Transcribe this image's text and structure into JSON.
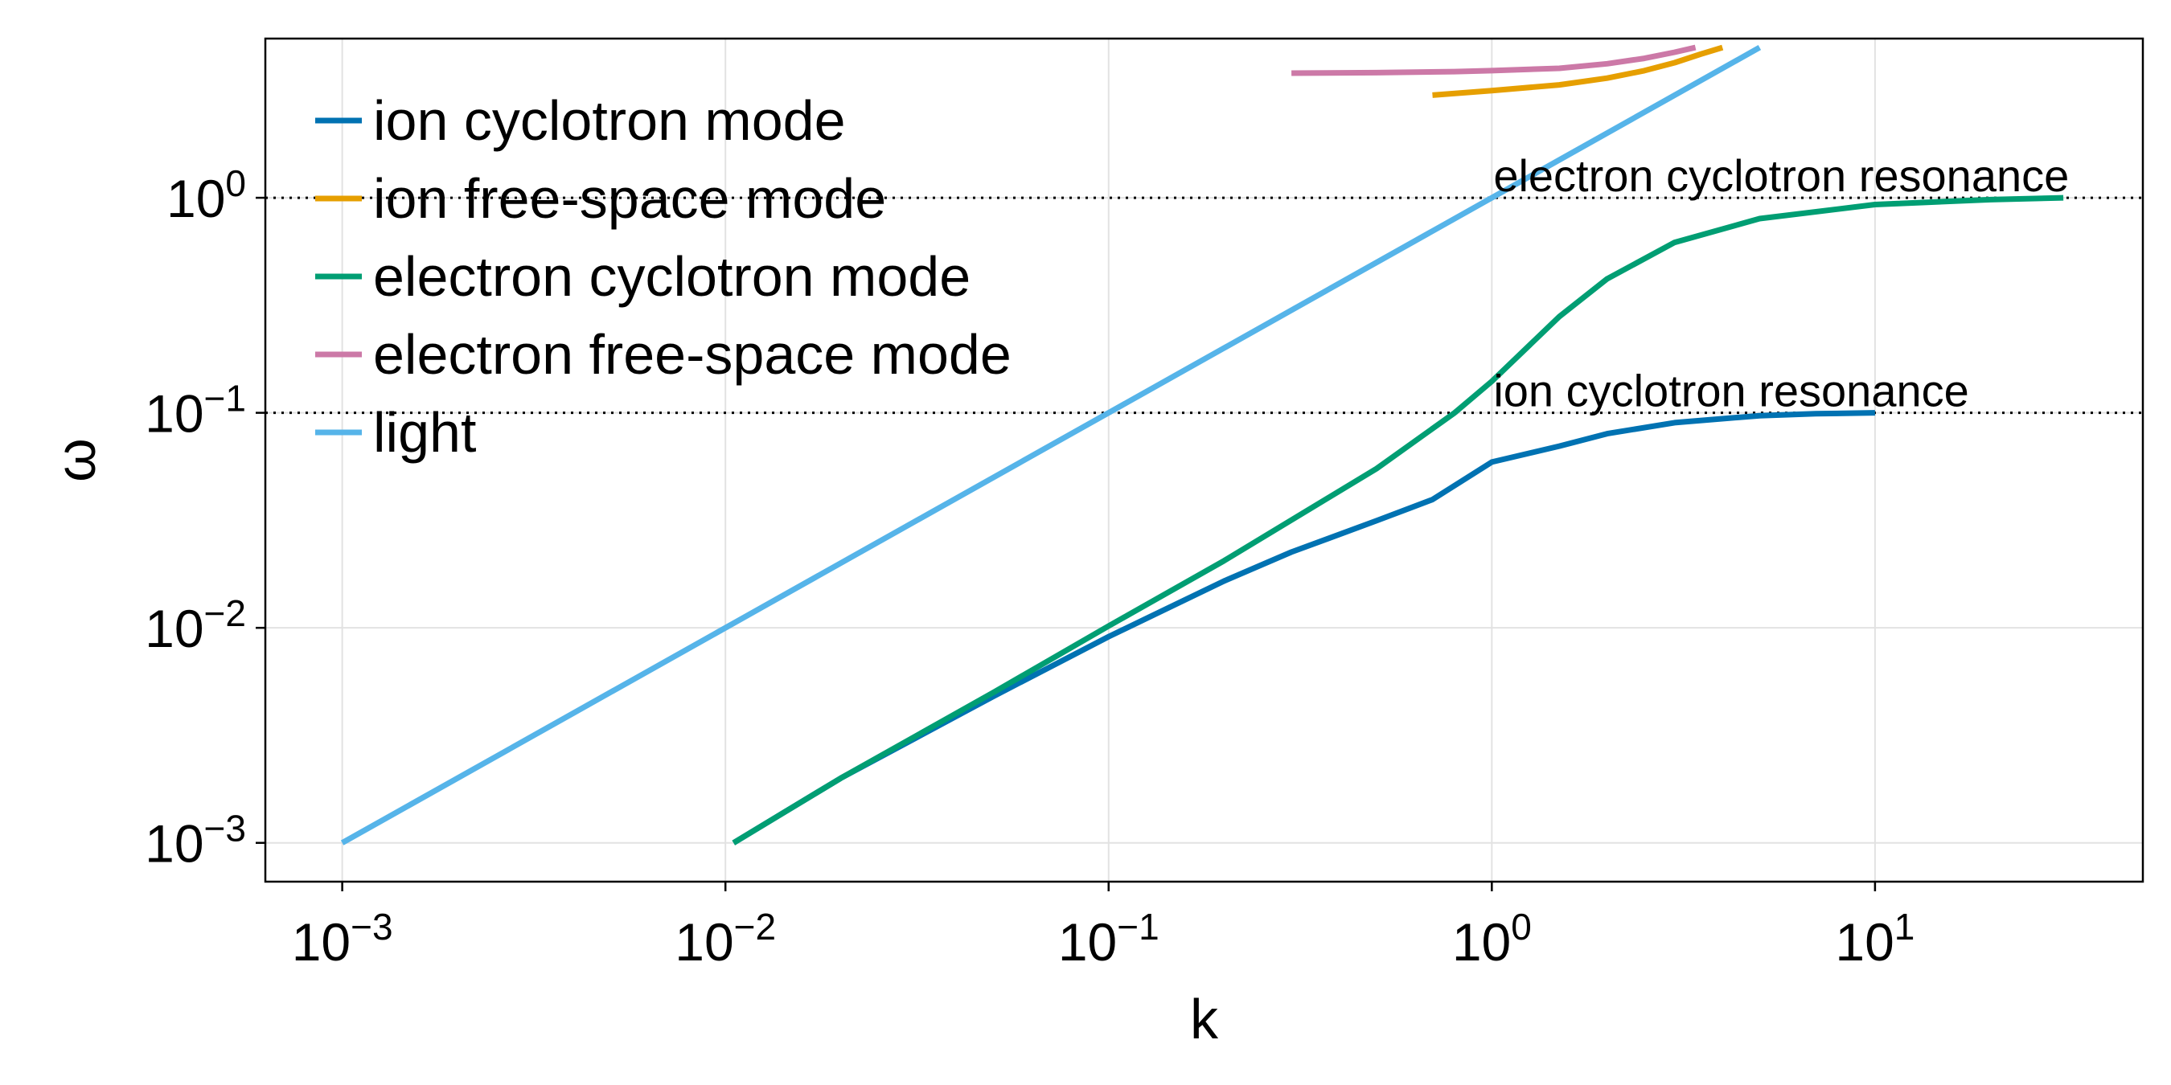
{
  "chart_data": {
    "type": "line",
    "xscale": "log",
    "yscale": "log",
    "xlabel": "k",
    "ylabel": "ω",
    "xlim": [
      0.00063,
      50
    ],
    "ylim": [
      0.00066,
      5.5
    ],
    "grid": true,
    "legend_position": "top-left",
    "x_ticks": [
      {
        "value": 0.001,
        "base": "10",
        "exp": "−3"
      },
      {
        "value": 0.01,
        "base": "10",
        "exp": "−2"
      },
      {
        "value": 0.1,
        "base": "10",
        "exp": "−1"
      },
      {
        "value": 1,
        "base": "10",
        "exp": "0"
      },
      {
        "value": 10,
        "base": "10",
        "exp": "1"
      }
    ],
    "y_ticks": [
      {
        "value": 0.001,
        "base": "10",
        "exp": "−3"
      },
      {
        "value": 0.01,
        "base": "10",
        "exp": "−2"
      },
      {
        "value": 0.1,
        "base": "10",
        "exp": "−1"
      },
      {
        "value": 1,
        "base": "10",
        "exp": "0"
      }
    ],
    "series": [
      {
        "name": "ion cyclotron mode",
        "color": "#0072b2",
        "x": [
          0.0105,
          0.02,
          0.05,
          0.1,
          0.2,
          0.3,
          0.5,
          0.7,
          1,
          1.5,
          2,
          3,
          5,
          7,
          10
        ],
        "y": [
          0.001,
          0.002,
          0.0048,
          0.0091,
          0.0165,
          0.0225,
          0.0315,
          0.0395,
          0.059,
          0.07,
          0.08,
          0.09,
          0.097,
          0.099,
          0.1
        ]
      },
      {
        "name": "ion free-space mode",
        "color": "#e69f00",
        "x": [
          0.7,
          1,
          1.5,
          2,
          2.5,
          3,
          3.5,
          4
        ],
        "y": [
          3.0,
          3.15,
          3.35,
          3.6,
          3.9,
          4.25,
          4.65,
          5.0
        ]
      },
      {
        "name": "electron cyclotron mode",
        "color": "#009e73",
        "x": [
          0.0105,
          0.02,
          0.05,
          0.1,
          0.2,
          0.5,
          0.8,
          1,
          1.5,
          2,
          3,
          5,
          10,
          20,
          31
        ],
        "y": [
          0.001,
          0.002,
          0.005,
          0.0102,
          0.0205,
          0.055,
          0.1,
          0.14,
          0.28,
          0.42,
          0.62,
          0.8,
          0.93,
          0.98,
          1.0
        ]
      },
      {
        "name": "electron free-space mode",
        "color": "#cc79a7",
        "x": [
          0.3,
          0.5,
          0.8,
          1,
          1.5,
          2,
          2.5,
          3,
          3.4
        ],
        "y": [
          3.8,
          3.82,
          3.86,
          3.9,
          4.0,
          4.2,
          4.45,
          4.75,
          5.0
        ]
      },
      {
        "name": "light",
        "color": "#56b4e9",
        "x": [
          0.001,
          5
        ],
        "y": [
          0.001,
          5
        ]
      }
    ],
    "reference_lines": [
      {
        "axis": "y",
        "value": 1,
        "label": "electron cyclotron resonance",
        "label_x": 1
      },
      {
        "axis": "y",
        "value": 0.1,
        "label": "ion cyclotron resonance",
        "label_x": 1
      }
    ]
  }
}
